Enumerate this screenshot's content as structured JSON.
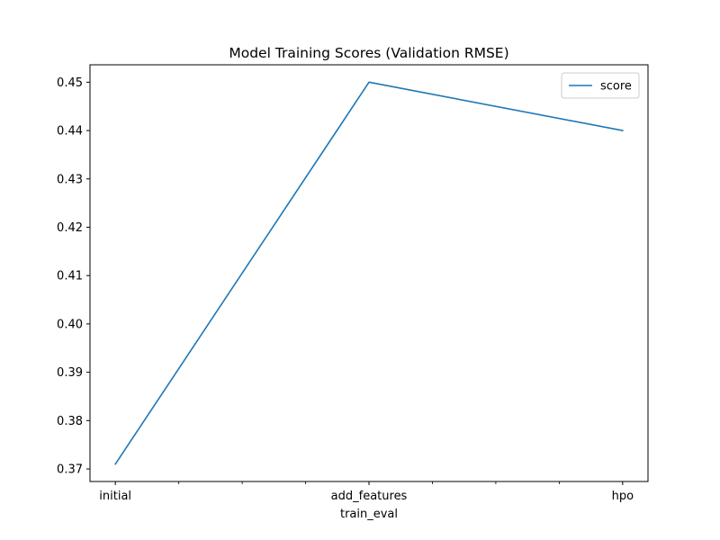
{
  "chart_data": {
    "type": "line",
    "title": "Model Training Scores (Validation RMSE)",
    "xlabel": "train_eval",
    "ylabel": "",
    "categories": [
      "initial",
      "add_features",
      "hpo"
    ],
    "series": [
      {
        "name": "score",
        "values": [
          0.371,
          0.45,
          0.44
        ],
        "color": "#1f77b4"
      }
    ],
    "ylim": [
      0.3674,
      0.4536
    ],
    "yticks": [
      0.37,
      0.38,
      0.39,
      0.4,
      0.41,
      0.42,
      0.43,
      0.44,
      0.45
    ],
    "ytick_labels": [
      "0.37",
      "0.38",
      "0.39",
      "0.40",
      "0.41",
      "0.42",
      "0.43",
      "0.44",
      "0.45"
    ],
    "minor_xticks": 6,
    "grid": false,
    "legend_position": "upper right"
  }
}
